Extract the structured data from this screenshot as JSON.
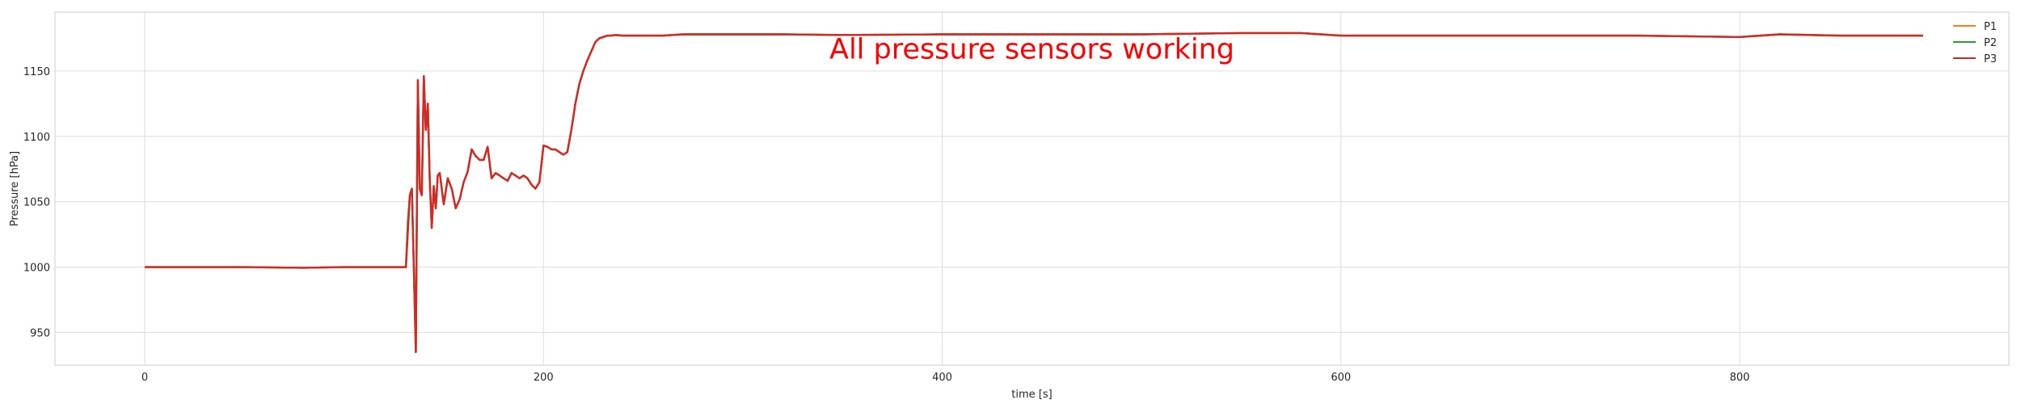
{
  "chart_data": {
    "type": "line",
    "title": "",
    "xlabel": "time [s]",
    "ylabel": "Pressure [hPa]",
    "xlim": [
      -45,
      935
    ],
    "ylim": [
      925,
      1195
    ],
    "xticks": [
      0,
      200,
      400,
      600,
      800
    ],
    "yticks": [
      950,
      1000,
      1050,
      1100,
      1150
    ],
    "grid": true,
    "legend_position": "top-right",
    "annotation": {
      "text": "All pressure sensors working",
      "x": 445,
      "y": 1167,
      "color": "#ff0000"
    },
    "series": [
      {
        "name": "P1",
        "color": "#ff7f0e",
        "x": [
          0,
          50,
          80,
          100,
          110,
          120,
          128,
          131,
          133,
          134,
          135,
          136,
          137,
          138,
          139,
          140,
          141,
          142,
          143,
          144,
          145,
          146,
          147,
          148,
          150,
          152,
          154,
          156,
          158,
          160,
          162,
          164,
          166,
          168,
          170,
          172,
          174,
          176,
          178,
          180,
          182,
          184,
          186,
          188,
          190,
          192,
          194,
          196,
          198,
          200,
          202,
          204,
          206,
          208,
          210,
          212,
          214,
          216,
          218,
          220,
          222,
          224,
          226,
          228,
          230,
          232,
          234,
          236,
          240,
          250,
          260,
          270,
          280,
          290,
          300,
          320,
          350,
          400,
          450,
          500,
          550,
          580,
          590,
          600,
          650,
          700,
          750,
          800,
          820,
          850,
          880,
          892
        ],
        "values": [
          1000,
          1000,
          999.5,
          1000,
          1000,
          1000,
          1000,
          1000,
          1055,
          1060,
          1000,
          935,
          1143,
          1060,
          1055,
          1146,
          1105,
          1125,
          1065,
          1030,
          1062,
          1045,
          1070,
          1072,
          1048,
          1068,
          1060,
          1045,
          1052,
          1065,
          1073,
          1090,
          1085,
          1082,
          1082,
          1092,
          1068,
          1072,
          1070,
          1068,
          1066,
          1072,
          1070,
          1068,
          1070,
          1068,
          1063,
          1060,
          1065,
          1093,
          1092,
          1090,
          1090,
          1088,
          1086,
          1088,
          1105,
          1125,
          1140,
          1150,
          1158,
          1165,
          1172,
          1175,
          1176,
          1177,
          1177,
          1177.5,
          1177,
          1177,
          1177,
          1178,
          1178,
          1178,
          1178,
          1178,
          1177.5,
          1178,
          1178,
          1178,
          1179,
          1179,
          1178,
          1177,
          1177,
          1177,
          1177,
          1176,
          1178,
          1177,
          1177,
          1177
        ]
      },
      {
        "name": "P2",
        "color": "#2ca02c",
        "x": [
          0,
          50,
          80,
          100,
          110,
          120,
          128,
          131,
          132,
          133,
          134,
          135,
          136,
          137,
          138,
          139,
          140,
          141,
          142,
          143,
          144,
          145,
          146,
          147,
          148,
          150,
          152,
          154,
          156,
          158,
          160,
          162,
          164,
          166,
          168,
          170,
          172,
          174,
          176,
          178,
          180,
          182,
          184,
          186,
          188,
          190,
          192,
          194,
          196,
          198,
          200,
          202,
          204,
          206,
          208,
          210,
          212,
          214,
          216,
          218,
          220,
          222,
          224,
          226,
          228,
          230,
          232,
          234,
          236,
          240,
          250,
          260,
          270,
          280,
          290,
          300,
          320,
          350,
          400,
          450,
          500,
          550,
          580,
          590,
          600,
          650,
          700,
          750,
          800,
          820,
          850,
          880,
          892
        ],
        "values": [
          1000,
          1000,
          999.5,
          1000,
          1000,
          1000,
          1000,
          1000,
          1035,
          1055,
          1060,
          1000,
          935,
          1143,
          1060,
          1055,
          1146,
          1105,
          1125,
          1065,
          1030,
          1062,
          1045,
          1070,
          1072,
          1048,
          1068,
          1060,
          1045,
          1052,
          1065,
          1073,
          1090,
          1085,
          1082,
          1082,
          1092,
          1068,
          1072,
          1070,
          1068,
          1066,
          1072,
          1070,
          1068,
          1070,
          1068,
          1063,
          1060,
          1065,
          1093,
          1092,
          1090,
          1090,
          1088,
          1086,
          1088,
          1105,
          1125,
          1140,
          1150,
          1158,
          1165,
          1172,
          1175,
          1176,
          1177,
          1177,
          1177.5,
          1177,
          1177,
          1177,
          1178,
          1178,
          1178,
          1178,
          1178,
          1177.5,
          1178,
          1178,
          1178,
          1179,
          1179,
          1178,
          1177,
          1177,
          1177,
          1177,
          1176,
          1178,
          1177,
          1177,
          1177
        ]
      },
      {
        "name": "P3",
        "color": "#d62728",
        "x": [
          0,
          50,
          80,
          100,
          110,
          120,
          128,
          131,
          133,
          134,
          135,
          136,
          137,
          138,
          139,
          140,
          141,
          142,
          143,
          144,
          145,
          146,
          147,
          148,
          150,
          152,
          154,
          156,
          158,
          160,
          162,
          164,
          166,
          168,
          170,
          172,
          174,
          176,
          178,
          180,
          182,
          184,
          186,
          188,
          190,
          192,
          194,
          196,
          198,
          200,
          202,
          204,
          206,
          208,
          210,
          212,
          214,
          216,
          218,
          220,
          222,
          224,
          226,
          228,
          230,
          232,
          234,
          236,
          240,
          250,
          260,
          270,
          280,
          290,
          300,
          320,
          350,
          400,
          450,
          500,
          550,
          580,
          590,
          600,
          650,
          700,
          750,
          800,
          820,
          850,
          880,
          892
        ],
        "values": [
          1000,
          1000,
          999.5,
          1000,
          1000,
          1000,
          1000,
          1000,
          1055,
          1060,
          1000,
          935,
          1143,
          1060,
          1055,
          1146,
          1105,
          1125,
          1065,
          1030,
          1062,
          1045,
          1070,
          1072,
          1048,
          1068,
          1060,
          1045,
          1052,
          1065,
          1073,
          1090,
          1085,
          1082,
          1082,
          1092,
          1068,
          1072,
          1070,
          1068,
          1066,
          1072,
          1070,
          1068,
          1070,
          1068,
          1063,
          1060,
          1065,
          1093,
          1092,
          1090,
          1090,
          1088,
          1086,
          1088,
          1105,
          1125,
          1140,
          1150,
          1158,
          1165,
          1172,
          1175,
          1176,
          1177,
          1177,
          1177.5,
          1177,
          1177,
          1177,
          1178,
          1178,
          1178,
          1178,
          1178,
          1177.5,
          1178,
          1178,
          1178,
          1179,
          1179,
          1178,
          1177,
          1177,
          1177,
          1177,
          1176,
          1178,
          1177,
          1177,
          1177
        ]
      }
    ]
  }
}
